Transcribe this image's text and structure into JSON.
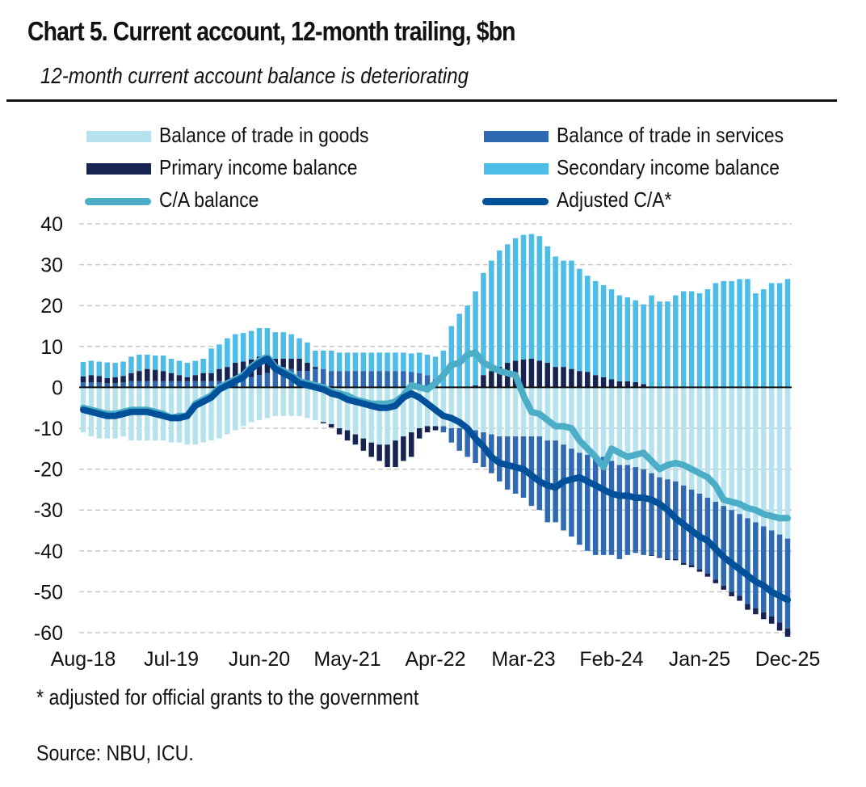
{
  "header": {
    "title": "Chart 5. Current account, 12-month trailing, $bn",
    "subtitle": "12-month current account balance is deteriorating"
  },
  "footer": {
    "footnote": "* adjusted for official grants to the government",
    "source": "Source: NBU, ICU."
  },
  "colors": {
    "goods": "#b6e2ee",
    "services": "#2e69b1",
    "primary": "#172352",
    "secondary": "#4dbde7",
    "ca_line": "#4badc6",
    "adj_line": "#00509a",
    "zero_line": "#111111",
    "grid": "#c8c8c8"
  },
  "legend": [
    {
      "key": "goods",
      "label": "Balance of trade in goods",
      "kind": "bar"
    },
    {
      "key": "services",
      "label": "Balance of trade in services",
      "kind": "bar"
    },
    {
      "key": "primary",
      "label": "Primary income balance",
      "kind": "bar"
    },
    {
      "key": "secondary",
      "label": "Secondary income balance",
      "kind": "bar"
    },
    {
      "key": "ca",
      "label": "C/A balance",
      "kind": "line"
    },
    {
      "key": "adj",
      "label": "Adjusted C/A*",
      "kind": "line"
    }
  ],
  "chart_data": {
    "type": "bar",
    "stacked": true,
    "title": "Chart 5. Current account, 12-month trailing, $bn",
    "subtitle": "12-month current account balance is deteriorating",
    "xlabel": "",
    "ylabel": "",
    "ylim": [
      -60,
      40
    ],
    "yticks": [
      40,
      30,
      20,
      10,
      0,
      -10,
      -20,
      -30,
      -40,
      -50,
      -60
    ],
    "grid": true,
    "legend_position": "top",
    "x_start": "Aug-18",
    "x_end": "Dec-25",
    "frequency": "monthly",
    "xtick_labels": [
      "Aug-18",
      "Jul-19",
      "Jun-20",
      "May-21",
      "Apr-22",
      "Mar-23",
      "Feb-24",
      "Jan-25",
      "Dec-25"
    ],
    "xtick_indices": [
      0,
      11,
      22,
      33,
      44,
      55,
      66,
      77,
      88
    ],
    "series": [
      {
        "name": "Balance of trade in goods",
        "key": "goods",
        "kind": "bar",
        "values": [
          -11,
          -12,
          -12.5,
          -12.5,
          -12.5,
          -12,
          -13,
          -13,
          -13,
          -13,
          -13,
          -13.5,
          -13.5,
          -14,
          -14,
          -13.5,
          -13,
          -12.5,
          -11.5,
          -10.5,
          -9.5,
          -8.5,
          -8,
          -7.5,
          -7,
          -7,
          -7,
          -7,
          -7.5,
          -8,
          -8.5,
          -9,
          -10,
          -10.5,
          -11.5,
          -12.5,
          -13.5,
          -14,
          -14,
          -13,
          -12,
          -11,
          -10,
          -9.5,
          -9.5,
          -9.5,
          -10,
          -10,
          -10,
          -10.5,
          -11,
          -11.5,
          -12,
          -12,
          -12,
          -12,
          -12,
          -12,
          -13,
          -13,
          -14,
          -15,
          -16,
          -16.5,
          -17,
          -17,
          -18,
          -19,
          -19,
          -19.5,
          -20,
          -21,
          -22,
          -22.5,
          -23,
          -24,
          -25,
          -26,
          -27,
          -28,
          -29,
          -30,
          -31,
          -32,
          -33,
          -34,
          -35,
          -36,
          -37
        ]
      },
      {
        "name": "Balance of trade in services",
        "key": "services",
        "kind": "bar",
        "values": [
          1.2,
          1.2,
          1.2,
          1.0,
          1.0,
          1.2,
          1.5,
          1.5,
          1.5,
          1.5,
          1.5,
          1.5,
          1.5,
          1.5,
          1.5,
          1.5,
          1.5,
          1.5,
          1.5,
          2.0,
          2.0,
          2.5,
          3.0,
          3.5,
          4.0,
          5.0,
          4.5,
          4.0,
          4.0,
          4.5,
          4.5,
          4.0,
          4.0,
          4.0,
          4.0,
          4.0,
          4.0,
          4.0,
          4.0,
          4.0,
          4.0,
          3.8,
          3.5,
          3.0,
          2.0,
          -1.5,
          -3.5,
          -5.5,
          -7,
          -8,
          -8.5,
          -9.5,
          -11,
          -13,
          -14,
          -15,
          -17,
          -18,
          -20,
          -20,
          -21,
          -21.5,
          -22.5,
          -23.5,
          -24,
          -24,
          -23,
          -23,
          -22,
          -21,
          -21,
          -20,
          -19.5,
          -19.5,
          -19,
          -19,
          -18.5,
          -18.5,
          -18.5,
          -19,
          -19.5,
          -20,
          -20,
          -21,
          -21,
          -21,
          -21,
          -21.5,
          -22
        ]
      },
      {
        "name": "Primary income balance",
        "key": "primary",
        "kind": "bar",
        "values": [
          1.5,
          1.8,
          1.6,
          1.3,
          1.5,
          1.6,
          2.0,
          2.5,
          3.0,
          2.8,
          2.5,
          2.0,
          1.5,
          1.0,
          1.5,
          2.0,
          2.0,
          3.0,
          3.5,
          4.0,
          4.3,
          4.3,
          4.5,
          4.0,
          3.0,
          2.0,
          2.5,
          3.0,
          2.0,
          0.5,
          -0.3,
          -0.8,
          -1.5,
          -2.5,
          -2.5,
          -3.0,
          -3.5,
          -4.0,
          -5.5,
          -6.5,
          -6.0,
          -6.0,
          -2.5,
          -1.5,
          -1.0,
          0,
          0,
          0,
          0,
          0.5,
          3.0,
          4.0,
          5.0,
          6.0,
          6.5,
          6.8,
          7.0,
          6.5,
          6.0,
          5.0,
          5.0,
          4.5,
          4.0,
          3.8,
          3.0,
          2.5,
          2.0,
          1.5,
          1.5,
          1.3,
          0.8,
          -0.2,
          -0.2,
          -0.2,
          -0.3,
          -0.4,
          -0.5,
          -0.6,
          -0.8,
          -0.9,
          -1.0,
          -1.1,
          -1.2,
          -1.4,
          -1.5,
          -1.7,
          -1.8,
          -2.0,
          -2.0
        ]
      },
      {
        "name": "Secondary income balance",
        "key": "secondary",
        "kind": "bar",
        "values": [
          3.5,
          3.5,
          3.5,
          3.8,
          3.5,
          3.5,
          4.0,
          4.0,
          3.5,
          3.5,
          3.8,
          3.5,
          3.5,
          3.5,
          3.5,
          3.5,
          6.0,
          6.0,
          7.0,
          7.0,
          7.0,
          7.0,
          7.0,
          7.0,
          6.5,
          6.5,
          6.0,
          5.0,
          5.0,
          4.0,
          4.5,
          5.0,
          4.5,
          4.5,
          4.5,
          4.5,
          4.5,
          4.5,
          4.5,
          4.5,
          4.5,
          4.5,
          5.0,
          5.0,
          5.5,
          9.0,
          15.0,
          18.0,
          20.0,
          23.0,
          25.0,
          27.0,
          28.5,
          29.0,
          30.0,
          30.5,
          30.5,
          30.5,
          28.5,
          27.0,
          26.0,
          26.5,
          25.0,
          23.5,
          23.0,
          22.5,
          22.0,
          21.0,
          20.5,
          20.0,
          19.5,
          22.5,
          21.0,
          21.0,
          22.5,
          23.5,
          23.5,
          23.0,
          24.0,
          25.5,
          26.0,
          26.0,
          26.5,
          26.5,
          23.0,
          24.0,
          25.5,
          25.5,
          26.5
        ]
      },
      {
        "name": "C/A balance",
        "key": "ca",
        "kind": "line",
        "values": [
          -5,
          -5.5,
          -6,
          -6.5,
          -6.5,
          -6,
          -5.5,
          -5.5,
          -5.5,
          -6,
          -6.5,
          -7.5,
          -7,
          -7,
          -4,
          -3,
          -2,
          0,
          1,
          2,
          3,
          5,
          6.5,
          7.5,
          5,
          4,
          3,
          1.5,
          1,
          0.5,
          0,
          -1,
          -1.5,
          -2,
          -3,
          -3.5,
          -4,
          -4,
          -4,
          -3.5,
          -2,
          0.5,
          0,
          -0.5,
          1,
          3,
          5.5,
          6,
          8,
          8.5,
          6,
          5,
          4,
          3.5,
          3,
          -2,
          -6,
          -6.5,
          -8,
          -9.5,
          -9.5,
          -10,
          -13,
          -15,
          -17,
          -19.5,
          -15,
          -16,
          -17,
          -16.5,
          -16,
          -18,
          -20,
          -19,
          -18.5,
          -19,
          -20,
          -21,
          -22,
          -24,
          -27.5,
          -28,
          -28.5,
          -29.5,
          -30,
          -31,
          -31.5,
          -32,
          -32
        ]
      },
      {
        "name": "Adjusted C/A*",
        "key": "adj",
        "kind": "line",
        "values": [
          -5.5,
          -6,
          -6.5,
          -7,
          -7,
          -6.5,
          -6,
          -6,
          -6,
          -6.5,
          -7,
          -7.5,
          -7.5,
          -7,
          -4.5,
          -3.5,
          -2.5,
          -0.5,
          0.5,
          1.5,
          2.5,
          4.5,
          6,
          7,
          4.5,
          3.5,
          2.5,
          1,
          0.5,
          0,
          -0.5,
          -1.5,
          -2,
          -3,
          -3.5,
          -4,
          -4.5,
          -5,
          -5,
          -4.5,
          -2.5,
          -1.5,
          -2.5,
          -4,
          -5.5,
          -7,
          -7.5,
          -8.5,
          -10,
          -12.5,
          -14.5,
          -17,
          -18.5,
          -19,
          -19.5,
          -20,
          -21.5,
          -23,
          -24,
          -24.5,
          -23,
          -22.5,
          -22,
          -23,
          -24,
          -25,
          -26,
          -26.5,
          -26.5,
          -27,
          -27,
          -27.5,
          -28.5,
          -30,
          -32,
          -33.5,
          -35,
          -36.5,
          -37.5,
          -39.5,
          -41.5,
          -43,
          -44.5,
          -46,
          -47.5,
          -48.5,
          -50,
          -51,
          -52
        ]
      }
    ]
  }
}
